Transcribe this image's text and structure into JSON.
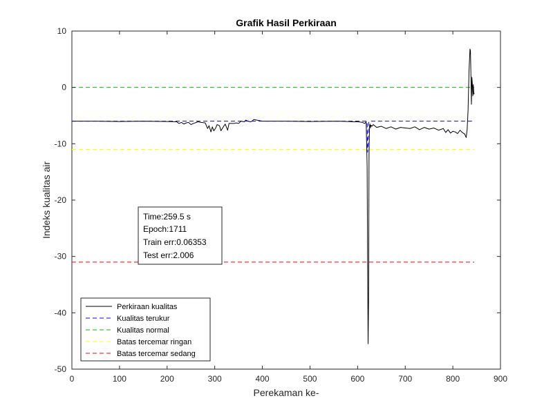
{
  "chart_data": {
    "type": "line",
    "title": "Grafik Hasil Perkiraan",
    "xlabel": "Perekaman ke-",
    "ylabel": "Indeks kualitas air",
    "xlim": [
      0,
      900
    ],
    "ylim": [
      -50,
      10
    ],
    "xticks": [
      0,
      100,
      200,
      300,
      400,
      500,
      600,
      700,
      800,
      900
    ],
    "yticks": [
      10,
      0,
      -10,
      -20,
      -30,
      -40,
      -50
    ],
    "grid": false,
    "legend_position": "bottom-left",
    "annotation_lines": [
      "Time:259.5 s",
      "Epoch:1711",
      "Train err:0.06353",
      "Test err:2.006"
    ],
    "series": [
      {
        "name": "Perkiraan kualitas",
        "color": "#000000",
        "style": "solid",
        "x": [
          0,
          50,
          100,
          150,
          200,
          220,
          225,
          230,
          235,
          240,
          245,
          250,
          255,
          265,
          270,
          280,
          285,
          288,
          292,
          295,
          298,
          302,
          305,
          310,
          313,
          318,
          322,
          327,
          330,
          340,
          345,
          350,
          355,
          362,
          365,
          370,
          375,
          378,
          382,
          400,
          450,
          500,
          560,
          590,
          600,
          610,
          615,
          618,
          620,
          621,
          622,
          623,
          624,
          625,
          626,
          627,
          628,
          630,
          633,
          640,
          650,
          660,
          670,
          680,
          690,
          700,
          710,
          720,
          730,
          740,
          750,
          760,
          770,
          780,
          785,
          790,
          795,
          800,
          805,
          810,
          815,
          820,
          825,
          828,
          830,
          832,
          834,
          836,
          837,
          838,
          839,
          840,
          841,
          842,
          843,
          844,
          845
        ],
        "y": [
          -6,
          -6,
          -6.05,
          -6,
          -6.05,
          -6.1,
          -6.4,
          -6.2,
          -6.5,
          -6.3,
          -6.2,
          -6.6,
          -6.4,
          -6.1,
          -6.2,
          -6.3,
          -7.3,
          -6.8,
          -7.9,
          -7.0,
          -7.7,
          -7.2,
          -6.6,
          -6.8,
          -7.7,
          -7.0,
          -6.5,
          -7.6,
          -6.4,
          -6.4,
          -6.3,
          -6.4,
          -6.0,
          -6.1,
          -5.8,
          -6.0,
          -6.1,
          -6.0,
          -5.7,
          -6.0,
          -6.0,
          -6.05,
          -6.0,
          -6.1,
          -6.1,
          -6.2,
          -6.4,
          -6.1,
          -14.0,
          -30.0,
          -45.5,
          -38.0,
          -12.0,
          -7.0,
          -6.5,
          -7.2,
          -6.7,
          -6.9,
          -6.6,
          -7.1,
          -6.9,
          -7.3,
          -7.0,
          -7.4,
          -7.1,
          -7.2,
          -7.3,
          -7.0,
          -7.5,
          -7.1,
          -7.4,
          -7.2,
          -7.6,
          -7.3,
          -8.0,
          -7.5,
          -8.1,
          -7.8,
          -7.9,
          -8.2,
          -7.6,
          -8.0,
          -8.3,
          -8.9,
          -7.5,
          -4.0,
          3.0,
          6.8,
          6.5,
          2.0,
          -3.0,
          1.8,
          0.5,
          -1.5,
          0.5,
          -1.2,
          -1.0
        ]
      },
      {
        "name": "Kualitas terukur",
        "color": "#0000ff",
        "style": "dashed",
        "x": [
          0,
          100,
          200,
          300,
          400,
          500,
          600,
          615,
          618,
          620,
          621,
          622,
          623,
          624,
          625,
          626,
          628,
          700,
          800,
          845
        ],
        "y": [
          -6,
          -6,
          -6,
          -6,
          -6,
          -6,
          -6,
          -6,
          -6,
          -6,
          -11.5,
          -10.5,
          -6.5,
          -6,
          -6,
          -6,
          -6,
          -6,
          -6,
          -6
        ]
      },
      {
        "name": "Kualitas normal",
        "color": "#00c000",
        "style": "dashed",
        "x": [
          0,
          845
        ],
        "y": [
          0,
          0
        ]
      },
      {
        "name": "Batas tercemar ringan",
        "color": "#ffff00",
        "style": "dashed",
        "x": [
          0,
          845
        ],
        "y": [
          -11,
          -11
        ]
      },
      {
        "name": "Batas tercemar sedang",
        "color": "#ff0000",
        "style": "dashed",
        "x": [
          0,
          845
        ],
        "y": [
          -31,
          -31
        ]
      }
    ]
  }
}
